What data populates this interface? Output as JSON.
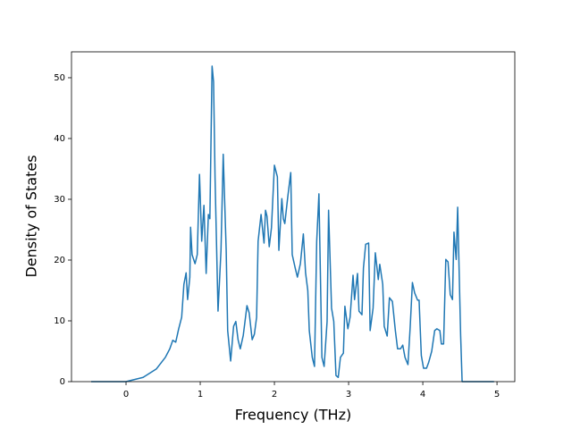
{
  "chart_data": {
    "type": "line",
    "x_label": "Frequency (THz)",
    "y_label": "Density of States",
    "xlim": [
      -0.735,
      5.24
    ],
    "ylim": [
      0,
      54.26
    ],
    "xticks": [
      0,
      1,
      2,
      3,
      4,
      5
    ],
    "yticks": [
      0,
      10,
      20,
      30,
      40,
      50
    ],
    "grid": false,
    "series": [
      {
        "color": "#1f77b4",
        "x": [
          -0.47,
          0,
          0.23,
          0.41,
          0.53,
          0.59,
          0.63,
          0.67,
          0.71,
          0.75,
          0.78,
          0.81,
          0.83,
          0.86,
          0.87,
          0.89,
          0.93,
          0.96,
          0.99,
          1.02,
          1.05,
          1.08,
          1.11,
          1.13,
          1.16,
          1.18,
          1.2,
          1.24,
          1.28,
          1.31,
          1.35,
          1.37,
          1.41,
          1.45,
          1.48,
          1.51,
          1.54,
          1.58,
          1.63,
          1.66,
          1.7,
          1.73,
          1.76,
          1.78,
          1.82,
          1.86,
          1.88,
          1.9,
          1.93,
          1.96,
          2.0,
          2.04,
          2.06,
          2.1,
          2.12,
          2.14,
          2.18,
          2.22,
          2.24,
          2.28,
          2.31,
          2.35,
          2.39,
          2.42,
          2.45,
          2.47,
          2.51,
          2.54,
          2.57,
          2.6,
          2.64,
          2.67,
          2.71,
          2.73,
          2.77,
          2.8,
          2.83,
          2.86,
          2.89,
          2.93,
          2.95,
          2.99,
          3.02,
          3.06,
          3.08,
          3.12,
          3.14,
          3.18,
          3.2,
          3.23,
          3.27,
          3.29,
          3.33,
          3.36,
          3.4,
          3.42,
          3.46,
          3.48,
          3.52,
          3.55,
          3.59,
          3.63,
          3.66,
          3.7,
          3.73,
          3.76,
          3.8,
          3.83,
          3.86,
          3.89,
          3.93,
          3.95,
          3.98,
          4.01,
          4.05,
          4.08,
          4.12,
          4.16,
          4.19,
          4.23,
          4.25,
          4.28,
          4.31,
          4.34,
          4.37,
          4.4,
          4.42,
          4.45,
          4.47,
          4.51,
          4.53,
          4.96
        ],
        "values": [
          0,
          0,
          0.7,
          2.1,
          4,
          5.4,
          6.8,
          6.5,
          8.7,
          10.6,
          16,
          17.9,
          13.5,
          17.2,
          25.4,
          20.9,
          19.4,
          20.9,
          34.1,
          23.1,
          29,
          17.8,
          27.5,
          26.8,
          51.9,
          49.3,
          33.4,
          11.6,
          21.6,
          37.4,
          21.6,
          8.4,
          3.4,
          9.1,
          9.9,
          6.9,
          5.4,
          7.6,
          12.5,
          11.3,
          6.9,
          7.8,
          10.6,
          23.1,
          27.5,
          22.8,
          28.2,
          27.2,
          22.2,
          25.3,
          35.6,
          33.7,
          21.6,
          30.1,
          26.8,
          26,
          30.4,
          34.4,
          20.9,
          18.7,
          17.2,
          19.4,
          24.3,
          17.9,
          15,
          8.4,
          4,
          2.5,
          23.1,
          30.9,
          4,
          2.5,
          9.9,
          28.2,
          12.1,
          9.9,
          1,
          0.7,
          4,
          4.7,
          12.4,
          8.7,
          10.6,
          17.5,
          13.5,
          17.8,
          11.6,
          11,
          18.7,
          22.6,
          22.8,
          8.4,
          12.1,
          21.2,
          16.8,
          19.3,
          16,
          9.1,
          7.5,
          13.8,
          13.2,
          8.4,
          5.4,
          5.4,
          6,
          4,
          2.8,
          9,
          16.3,
          14.6,
          13.4,
          13.4,
          4.3,
          2.2,
          2.2,
          3.2,
          5,
          8.4,
          8.7,
          8.4,
          6.2,
          6.2,
          20.1,
          19.7,
          14.3,
          13.5,
          24.6,
          20.1,
          28.7,
          7.6,
          0,
          0
        ]
      }
    ]
  }
}
